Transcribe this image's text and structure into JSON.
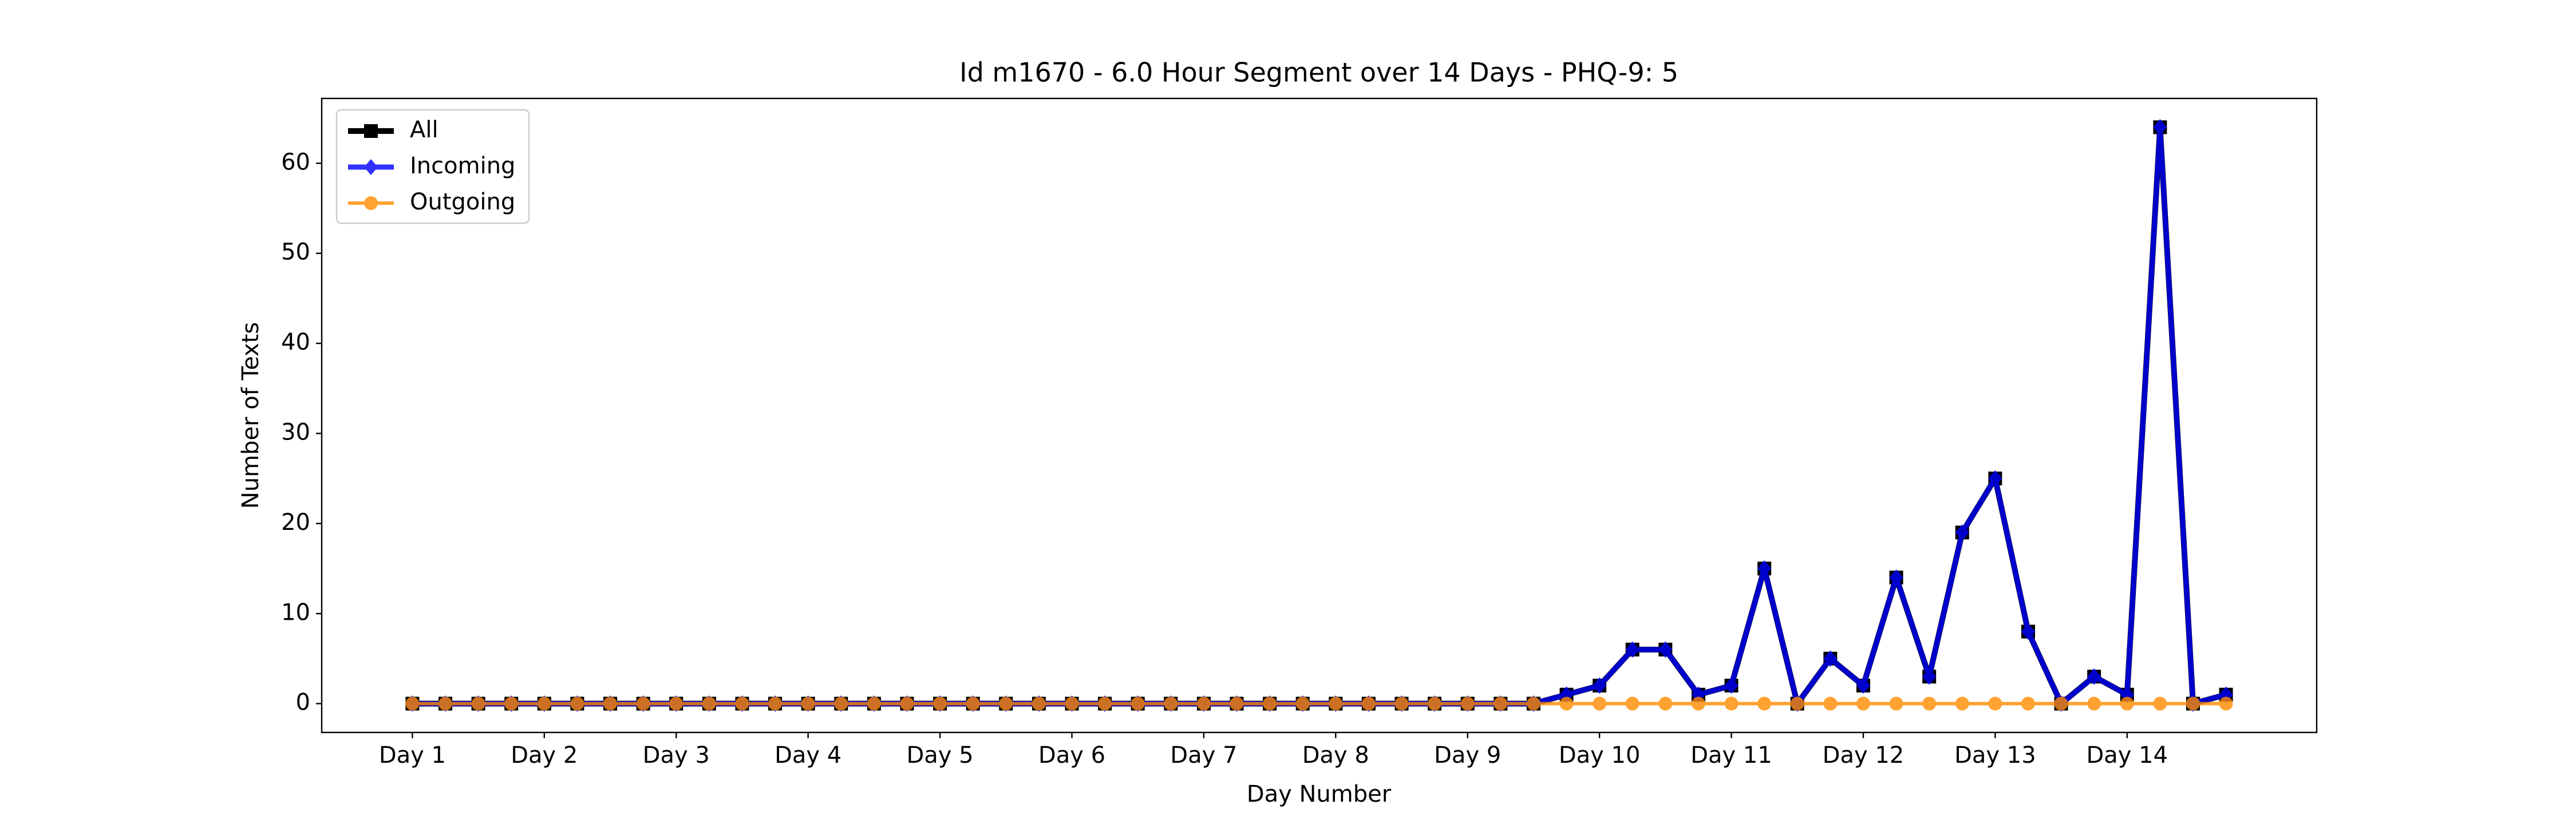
{
  "chart_data": {
    "type": "line",
    "title": "Id m1670 - 6.0 Hour Segment over 14 Days - PHQ-9: 5",
    "x_label": "Day Number",
    "y_label": "Number of Texts",
    "categories": [
      "Day 1",
      null,
      null,
      null,
      "Day 2",
      null,
      null,
      null,
      "Day 3",
      null,
      null,
      null,
      "Day 4",
      null,
      null,
      null,
      "Day 5",
      null,
      null,
      null,
      "Day 6",
      null,
      null,
      null,
      "Day 7",
      null,
      null,
      null,
      "Day 8",
      null,
      null,
      null,
      "Day 9",
      null,
      null,
      null,
      "Day 10",
      null,
      null,
      null,
      "Day 11",
      null,
      null,
      null,
      "Day 12",
      null,
      null,
      null,
      "Day 13",
      null,
      null,
      null,
      "Day 14",
      null,
      null,
      null
    ],
    "series": [
      {
        "name": "All",
        "color": "#000000",
        "marker": "square",
        "values": [
          0,
          0,
          0,
          0,
          0,
          0,
          0,
          0,
          0,
          0,
          0,
          0,
          0,
          0,
          0,
          0,
          0,
          0,
          0,
          0,
          0,
          0,
          0,
          0,
          0,
          0,
          0,
          0,
          0,
          0,
          0,
          0,
          0,
          0,
          0,
          1,
          2,
          6,
          6,
          1,
          2,
          15,
          0,
          5,
          2,
          14,
          3,
          19,
          25,
          8,
          0,
          3,
          1,
          64,
          0,
          1
        ]
      },
      {
        "name": "Incoming",
        "color": "#0000ff",
        "marker": "diamond",
        "values": [
          0,
          0,
          0,
          0,
          0,
          0,
          0,
          0,
          0,
          0,
          0,
          0,
          0,
          0,
          0,
          0,
          0,
          0,
          0,
          0,
          0,
          0,
          0,
          0,
          0,
          0,
          0,
          0,
          0,
          0,
          0,
          0,
          0,
          0,
          0,
          1,
          2,
          6,
          6,
          1,
          2,
          15,
          0,
          5,
          2,
          14,
          3,
          19,
          25,
          8,
          0,
          3,
          1,
          64,
          0,
          1
        ]
      },
      {
        "name": "Outgoing",
        "color": "#ff8c00",
        "marker": "circle",
        "values": [
          0,
          0,
          0,
          0,
          0,
          0,
          0,
          0,
          0,
          0,
          0,
          0,
          0,
          0,
          0,
          0,
          0,
          0,
          0,
          0,
          0,
          0,
          0,
          0,
          0,
          0,
          0,
          0,
          0,
          0,
          0,
          0,
          0,
          0,
          0,
          0,
          0,
          0,
          0,
          0,
          0,
          0,
          0,
          0,
          0,
          0,
          0,
          0,
          0,
          0,
          0,
          0,
          0,
          0,
          0,
          0
        ]
      }
    ],
    "ylim": [
      -3.2,
      67.2
    ],
    "yticks": [
      0,
      10,
      20,
      30,
      40,
      50,
      60
    ],
    "legend": "upper left"
  }
}
